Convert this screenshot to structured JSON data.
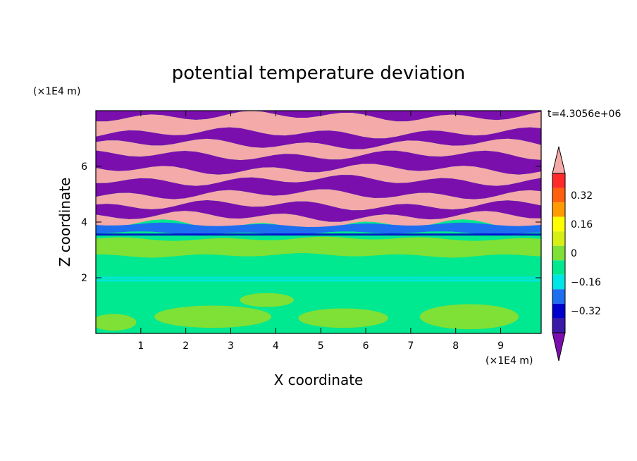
{
  "chart_data": {
    "type": "heatmap",
    "title": "potential temperature deviation",
    "time_label": "t=4.3056e+06",
    "xlabel": "X coordinate",
    "ylabel": "Z coordinate",
    "x_unit": "(×1E4 m)",
    "y_unit": "(×1E4 m)",
    "xlim": [
      0,
      9.9
    ],
    "ylim": [
      0,
      8.0
    ],
    "x_ticks": [
      1,
      2,
      3,
      4,
      5,
      6,
      7,
      8,
      9
    ],
    "y_ticks": [
      2,
      4,
      6
    ],
    "colorbar": {
      "levels": [
        -0.48,
        -0.4,
        -0.32,
        -0.24,
        -0.16,
        -0.08,
        0,
        0.08,
        0.16,
        0.24,
        0.32,
        0.4,
        0.48
      ],
      "colors": [
        "#7b0fae",
        "#3a1aa8",
        "#0000cc",
        "#1e6ef0",
        "#00e5e5",
        "#00e890",
        "#7fe035",
        "#d6ef14",
        "#ffff00",
        "#ff9b00",
        "#ff6010",
        "#ff2a2a",
        "#f4aaa8"
      ],
      "labels": [
        "0.32",
        "0.16",
        "0",
        "-0.16",
        "-0.32"
      ],
      "label_values": [
        0.32,
        0.16,
        0,
        -0.16,
        -0.32
      ],
      "extend": "both"
    },
    "field_bands": [
      {
        "z": [
          7.8,
          8.0
        ],
        "value": -0.48
      },
      {
        "z": [
          7.2,
          7.8
        ],
        "value": 0.48
      },
      {
        "z": [
          6.8,
          7.2
        ],
        "value": -0.48
      },
      {
        "z": [
          6.4,
          6.8
        ],
        "value": 0.48
      },
      {
        "z": [
          5.9,
          6.4
        ],
        "value": -0.48
      },
      {
        "z": [
          5.5,
          5.9
        ],
        "value": 0.48
      },
      {
        "z": [
          5.0,
          5.5
        ],
        "value": -0.48
      },
      {
        "z": [
          4.6,
          5.0
        ],
        "value": 0.48
      },
      {
        "z": [
          4.2,
          4.6
        ],
        "value": -0.48
      },
      {
        "z": [
          3.9,
          4.2
        ],
        "value": 0.48
      },
      {
        "z": [
          3.6,
          3.9
        ],
        "value": -0.24
      },
      {
        "z": [
          3.4,
          3.6
        ],
        "value": -0.08
      },
      {
        "z": [
          2.8,
          3.4
        ],
        "value": 0.0
      },
      {
        "z": [
          2.0,
          2.8
        ],
        "value": -0.08
      },
      {
        "z": [
          0.0,
          2.0
        ],
        "value": -0.08
      }
    ]
  }
}
